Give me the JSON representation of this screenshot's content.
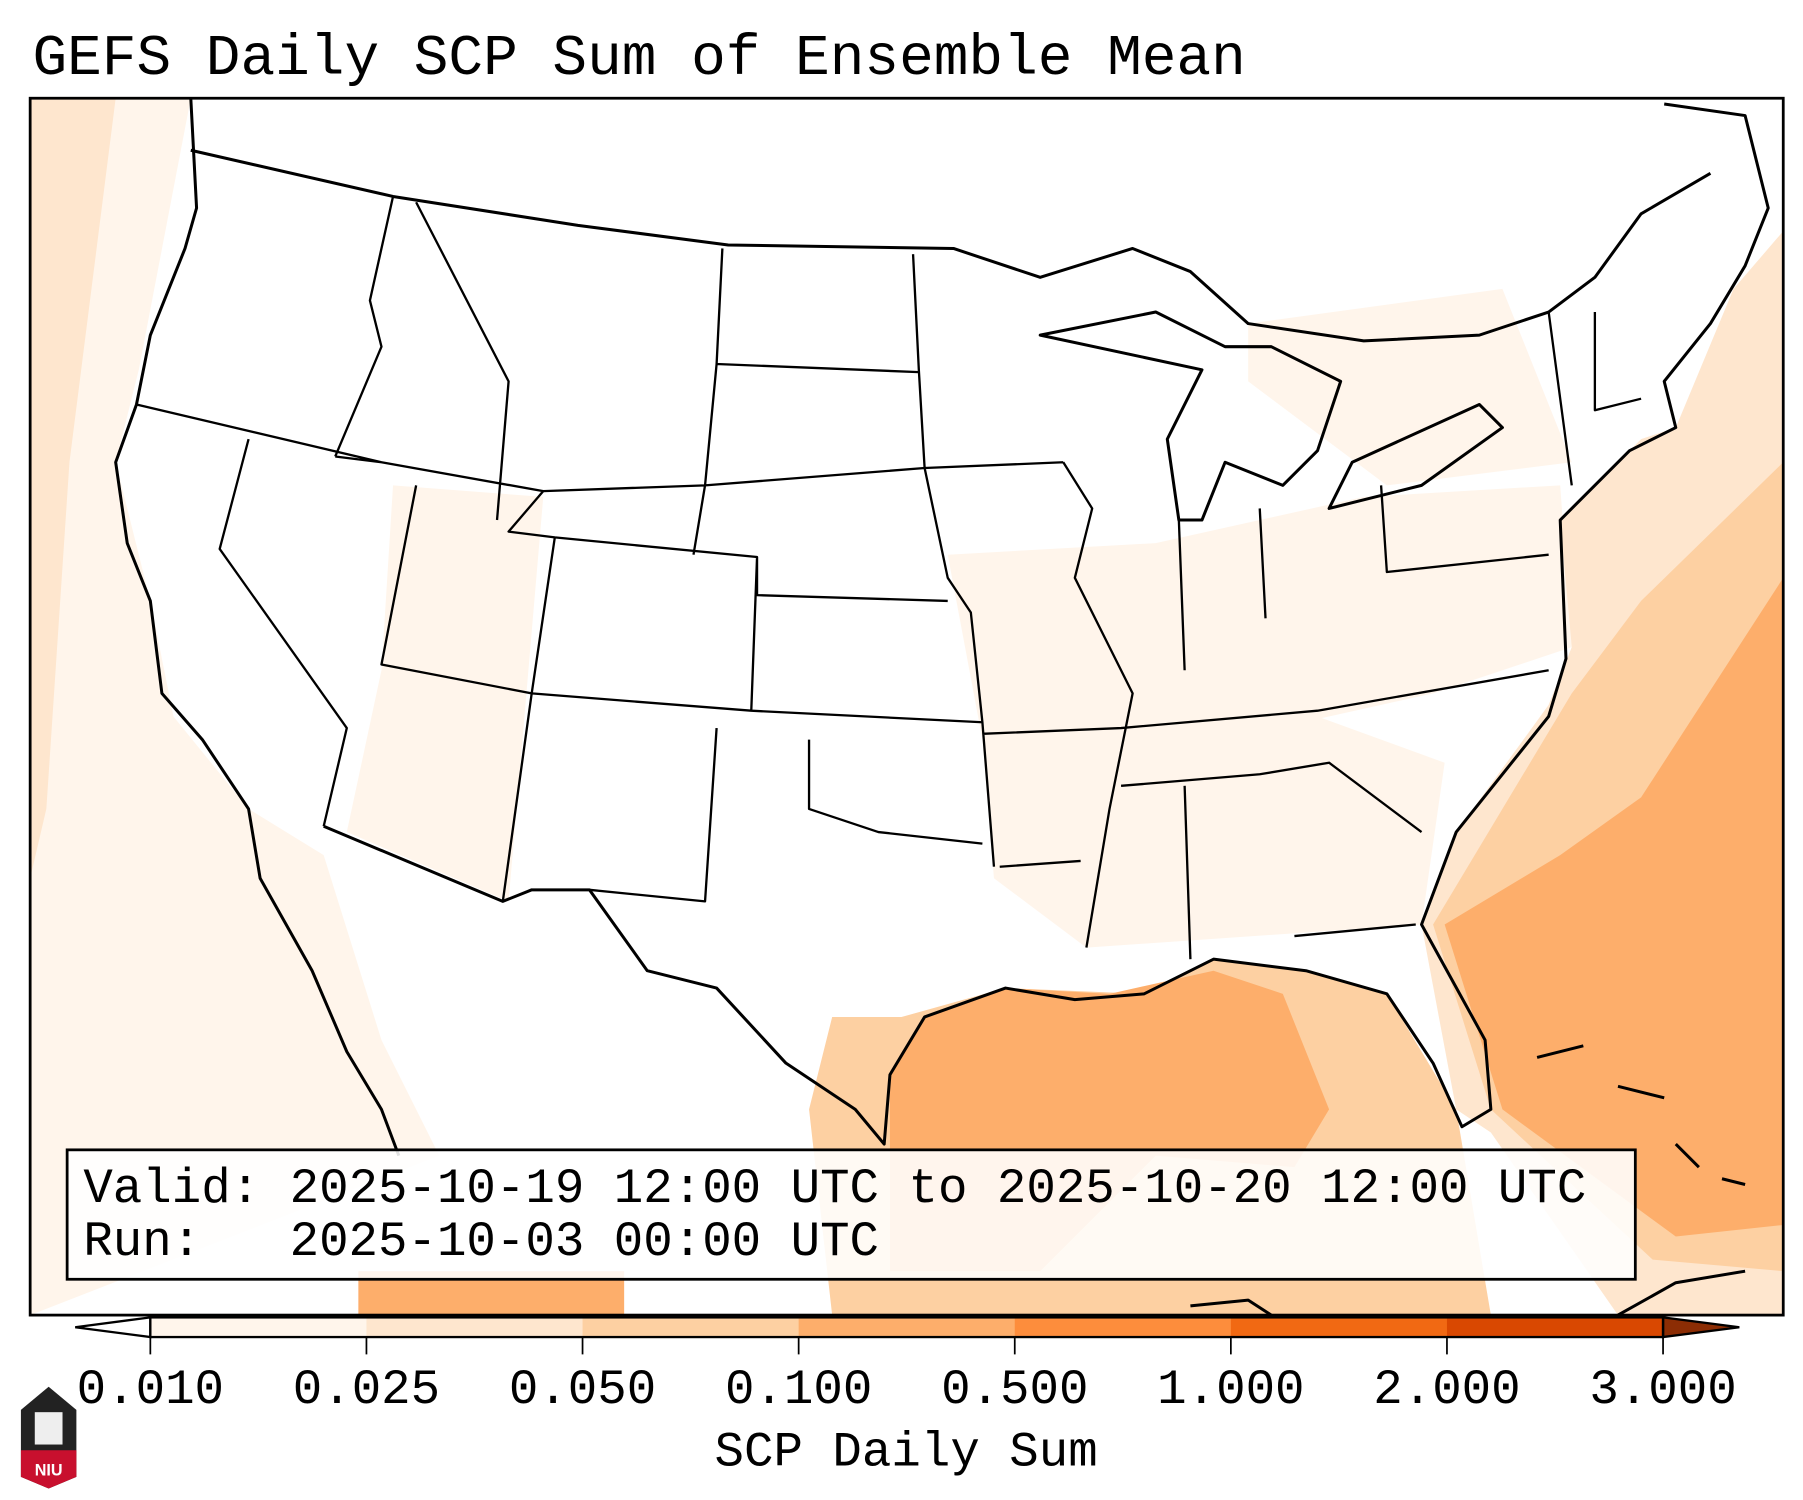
{
  "title": "GEFS Daily SCP Sum of Ensemble Mean",
  "info_box": {
    "valid_line": "Valid: 2025-10-19 12:00 UTC to 2025-10-20 12:00 UTC",
    "run_line": "Run:   2025-10-03 00:00 UTC"
  },
  "colorbar": {
    "label": "SCP Daily Sum",
    "ticks": [
      "0.010",
      "0.025",
      "0.050",
      "0.100",
      "0.500",
      "1.000",
      "2.000",
      "3.000"
    ],
    "colors": [
      "#fff5eb",
      "#fee6ce",
      "#fdd0a2",
      "#fdae6b",
      "#fd8d3c",
      "#f16913",
      "#d94801"
    ],
    "under_color": "#ffffff",
    "over_color": "#8c2d04"
  },
  "logo": {
    "text": "NIU"
  }
}
